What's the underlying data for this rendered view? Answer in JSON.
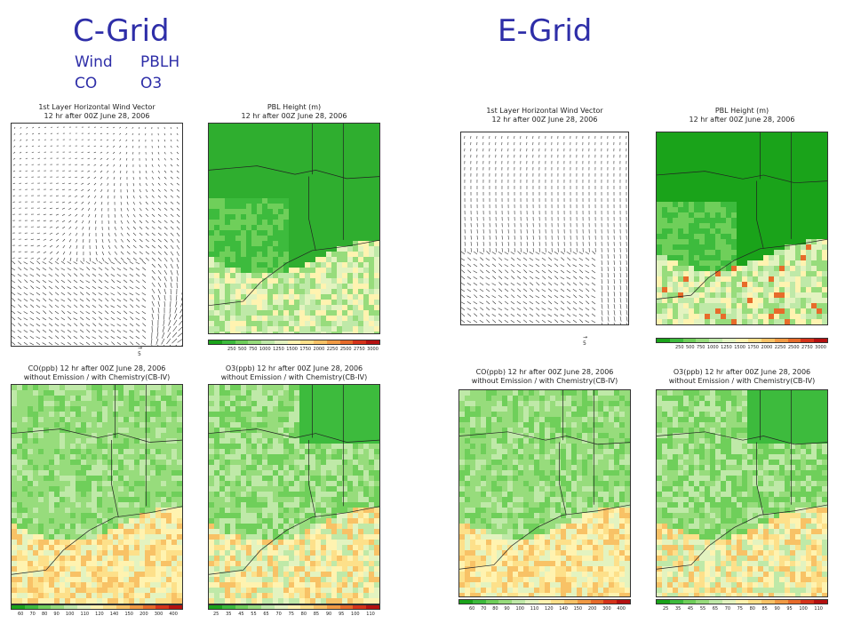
{
  "header": {
    "left_title": "C-Grid",
    "right_title": "E-Grid",
    "legend_row1": [
      "Wind",
      "PBLH"
    ],
    "legend_row2": [
      "CO",
      "O3"
    ]
  },
  "panels": {
    "wind_title_1": "1st Layer Horizontal Wind Vector",
    "wind_title_2": "12 hr after 00Z June 28, 2006",
    "pbl_title_1": "PBL Height (m)",
    "pbl_title_2": "12 hr after 00Z June 28, 2006",
    "co_title_1": "CO(ppb) 12 hr after 00Z June 28, 2006",
    "co_title_2": "without Emission / with Chemistry(CB-IV)",
    "o3_title_1": "O3(ppb) 12 hr after 00Z June 28, 2006",
    "o3_title_2": "without Emission / with Chemistry(CB-IV)",
    "ref_arrow_label": "5"
  },
  "colorbars": {
    "pbl_ticks": [
      "250",
      "500",
      "750",
      "1000",
      "1250",
      "1500",
      "1750",
      "2000",
      "2250",
      "2500",
      "2750",
      "3000"
    ],
    "co_ticks": [
      "60",
      "70",
      "80",
      "90",
      "100",
      "110",
      "120",
      "140",
      "150",
      "200",
      "300",
      "400"
    ],
    "o3_ticks": [
      "25",
      "35",
      "45",
      "55",
      "65",
      "70",
      "75",
      "80",
      "85",
      "90",
      "95",
      "100",
      "110"
    ],
    "colors": [
      "#1aa31a",
      "#3dbb3d",
      "#6fcf5a",
      "#97dc7c",
      "#bfe9a8",
      "#e3f3c0",
      "#fff3b0",
      "#fde08a",
      "#f8c266",
      "#f19a44",
      "#e76b2a",
      "#d6331a",
      "#b51010"
    ]
  }
}
